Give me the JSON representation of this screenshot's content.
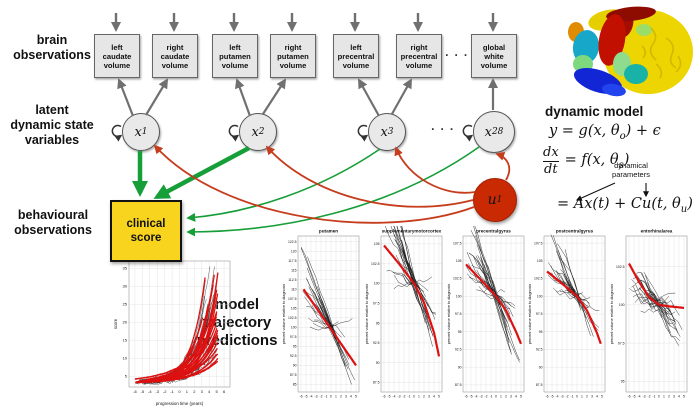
{
  "labels": {
    "brain_observations": [
      "brain",
      "observations"
    ],
    "latent_variables": [
      "latent",
      "dynamic state",
      "variables"
    ],
    "behavioural_observations": [
      "behavioural",
      "observations"
    ],
    "trajectory_predictions": [
      "model",
      "trajectory",
      "predictions"
    ],
    "dynamic_model": "dynamic model"
  },
  "graph": {
    "observation_boxes": [
      {
        "label": [
          "left",
          "caudate",
          "volume"
        ]
      },
      {
        "label": [
          "right",
          "caudate",
          "volume"
        ]
      },
      {
        "label": [
          "left",
          "putamen",
          "volume"
        ]
      },
      {
        "label": [
          "right",
          "putamen",
          "volume"
        ]
      },
      {
        "label": [
          "left",
          "precentral",
          "volume"
        ]
      },
      {
        "label": [
          "right",
          "precentral",
          "volume"
        ]
      },
      {
        "label": [
          "global",
          "white",
          "volume"
        ]
      }
    ],
    "box_ellipsis": "· · ·",
    "latent_nodes": [
      {
        "base": "x",
        "sub": "1"
      },
      {
        "base": "x",
        "sub": "2"
      },
      {
        "base": "x",
        "sub": "3"
      },
      {
        "base": "x",
        "sub": "28"
      }
    ],
    "latent_ellipsis": "· · ·",
    "input_node": {
      "base": "u",
      "sub": "1"
    },
    "clinical_box": [
      "clinical",
      "score"
    ]
  },
  "equations": {
    "line1": "y = g(x, θ_o_) + ϵ",
    "frac_num": "dx",
    "frac_den": "dt",
    "line2_rhs": "= f(x, θ_s_)",
    "annotation": [
      "dynamical",
      "parameters"
    ],
    "line3": "= Ax(t) + Cu(t, θ_u_)"
  },
  "colors": {
    "green_arrow": "#169e38",
    "red_arrow": "#c63d1d",
    "gray_arrow": "#707070",
    "input_node_fill": "#c92a04",
    "clinical_fill": "#f8d41f",
    "box_fill": "#e6e6e6",
    "model_curve_red": "#dd1111",
    "data_line_black": "#1a1a1a"
  },
  "chart_data": [
    {
      "id": "score_trajectories",
      "type": "line",
      "title": "",
      "xlabel": "progression time (years)",
      "ylabel": "score",
      "xticks": [
        -6,
        -5,
        -4,
        -3,
        -2,
        -1,
        0,
        1,
        2,
        3,
        4,
        5,
        6
      ],
      "yticks": [
        5,
        10,
        15,
        20,
        25,
        30,
        35
      ],
      "xlim": [
        -6.8,
        6.8
      ],
      "ylim": [
        2,
        37
      ],
      "grid": true,
      "red_median_curve": [
        [
          -6,
          4.2
        ],
        [
          -4,
          4.8
        ],
        [
          -2,
          5.8
        ],
        [
          0,
          7.5
        ],
        [
          1,
          9
        ],
        [
          2,
          11.5
        ],
        [
          3,
          14.5
        ],
        [
          4,
          20
        ],
        [
          5,
          29
        ]
      ],
      "n_red_subject_curves": 30,
      "n_black_subject_lines": 22,
      "description": "per-subject model-predicted clinical score trajectories (red, exponentially increasing) over observed data (black)"
    },
    {
      "id": "putamen",
      "type": "line",
      "title": "putamen",
      "ylabel": "percent volume relative to diagnosis",
      "xticks": [
        -6,
        -5,
        -4,
        -3,
        -2,
        -1,
        0,
        1,
        2,
        3,
        4,
        5
      ],
      "ytick_min": 85,
      "ytick_max": 122.5,
      "ytick_step": 2.5,
      "xlim": [
        -6.6,
        5.6
      ],
      "ylim": [
        83,
        124
      ],
      "grid": true,
      "red_model_curve": [
        [
          -5.5,
          110
        ],
        [
          0,
          99.5
        ],
        [
          5,
          90
        ]
      ],
      "n_black_subject_lines": 26
    },
    {
      "id": "supplementarymotorcortex",
      "type": "line",
      "title": "supplementarymotorcortex",
      "ylabel": "percent volume relative to diagnosis",
      "xticks": [
        -6,
        -5,
        -4,
        -3,
        -2,
        -1,
        0,
        1,
        2,
        3,
        4,
        5
      ],
      "ytick_min": 87.5,
      "ytick_max": 105,
      "ytick_step": 2.5,
      "xlim": [
        -6.6,
        5.6
      ],
      "ylim": [
        86.3,
        106
      ],
      "grid": true,
      "red_model_curve": [
        [
          -6,
          104.8
        ],
        [
          -3,
          102.5
        ],
        [
          0,
          100
        ],
        [
          2,
          97.6
        ],
        [
          4,
          93.8
        ],
        [
          5,
          90.8
        ]
      ],
      "n_black_subject_lines": 26
    },
    {
      "id": "precentralgyrus",
      "type": "line",
      "title": "precentralgyrus",
      "ylabel": "percent volume relative to diagnosis",
      "xticks": [
        -6,
        -5,
        -4,
        -3,
        -2,
        -1,
        0,
        1,
        2,
        3,
        4,
        5
      ],
      "ytick_min": 87.5,
      "ytick_max": 107.5,
      "ytick_step": 2.5,
      "xlim": [
        -6.6,
        5.6
      ],
      "ylim": [
        86.5,
        108.5
      ],
      "grid": true,
      "red_model_curve": [
        [
          -6,
          104.5
        ],
        [
          -3,
          102.3
        ],
        [
          0,
          100
        ],
        [
          2,
          98
        ],
        [
          4,
          95
        ],
        [
          5,
          93.3
        ]
      ],
      "n_black_subject_lines": 26
    },
    {
      "id": "postcentralgyrus",
      "type": "line",
      "title": "postcentralgyrus",
      "ylabel": "percent volume relative to diagnosis",
      "xticks": [
        -6,
        -5,
        -4,
        -3,
        -2,
        -1,
        0,
        1,
        2,
        3,
        4,
        5
      ],
      "ytick_min": 87.5,
      "ytick_max": 107.5,
      "ytick_step": 2.5,
      "xlim": [
        -6.6,
        5.6
      ],
      "ylim": [
        86.5,
        108.5
      ],
      "grid": true,
      "red_model_curve": [
        [
          -6,
          103.5
        ],
        [
          -3,
          101.8
        ],
        [
          0,
          100
        ],
        [
          2,
          98
        ],
        [
          4,
          94.8
        ],
        [
          4.8,
          93.2
        ]
      ],
      "n_black_subject_lines": 26
    },
    {
      "id": "entorhinalarea",
      "type": "line",
      "title": "entorhinalarea",
      "ylabel": "percent volume relative to diagnosis",
      "xticks": [
        -6,
        -5,
        -4,
        -3,
        -2,
        -1,
        0,
        1,
        2,
        3,
        4,
        5
      ],
      "ytick_min": 95,
      "ytick_max": 102.5,
      "ytick_step": 2.5,
      "xlim": [
        -6.6,
        5.6
      ],
      "ylim": [
        94.3,
        104.5
      ],
      "grid": true,
      "red_model_curve": [
        [
          -6,
          102.7
        ],
        [
          -4,
          101.5
        ],
        [
          -2,
          100.5
        ],
        [
          0,
          100
        ],
        [
          2,
          99.9
        ],
        [
          5,
          99.8
        ]
      ],
      "n_black_subject_lines": 26
    }
  ]
}
